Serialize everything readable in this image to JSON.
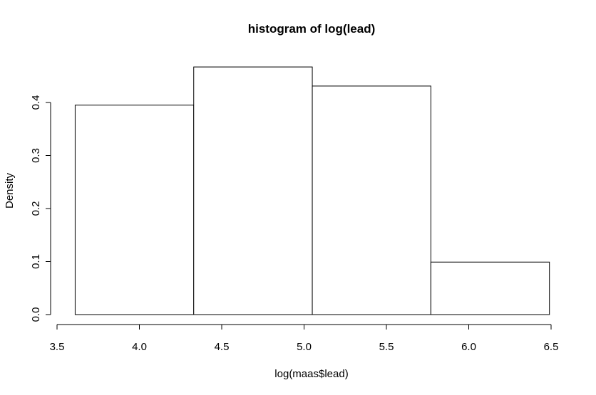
{
  "chart_data": {
    "type": "histogram",
    "title": "histogram of log(lead)",
    "xlabel": "log(maas$lead)",
    "ylabel": "Density",
    "bins": [
      {
        "x0": 3.61,
        "x1": 4.33,
        "density": 0.395
      },
      {
        "x0": 4.33,
        "x1": 5.05,
        "density": 0.467
      },
      {
        "x0": 5.05,
        "x1": 5.77,
        "density": 0.431
      },
      {
        "x0": 5.77,
        "x1": 6.49,
        "density": 0.099
      }
    ],
    "xticks": [
      "3.5",
      "4.0",
      "4.5",
      "5.0",
      "5.5",
      "6.0",
      "6.5"
    ],
    "xtick_values": [
      3.5,
      4.0,
      4.5,
      5.0,
      5.5,
      6.0,
      6.5
    ],
    "yticks": [
      "0.0",
      "0.1",
      "0.2",
      "0.3",
      "0.4"
    ],
    "ytick_values": [
      0.0,
      0.1,
      0.2,
      0.3,
      0.4
    ],
    "xlim": [
      3.5,
      6.5
    ],
    "ylim": [
      0,
      0.47
    ],
    "grid": false,
    "bar_fill": "#ffffff",
    "bar_stroke": "#000000"
  }
}
